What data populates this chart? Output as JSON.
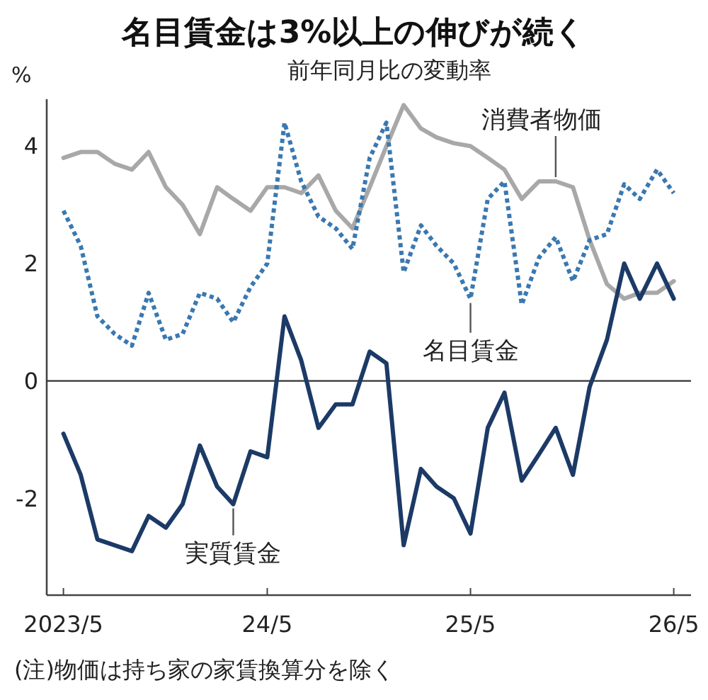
{
  "chart_data": {
    "type": "line",
    "title": "名目賃金は3%以上の伸びが続く",
    "subtitle": "前年同月比の変動率",
    "ylabel": "%",
    "annotations": [
      "(注)物価は持ち家の家賃換算分を除く"
    ],
    "x": [
      "2023-05",
      "2023-06",
      "2023-07",
      "2023-08",
      "2023-09",
      "2023-10",
      "2023-11",
      "2023-12",
      "2024-01",
      "2024-02",
      "2024-03",
      "2024-04",
      "2024-05",
      "2024-06",
      "2024-07",
      "2024-08",
      "2024-09",
      "2024-10",
      "2024-11",
      "2024-12",
      "2025-01",
      "2025-02",
      "2025-03",
      "2025-04",
      "2025-05",
      "2025-06",
      "2025-07",
      "2025-08",
      "2025-09",
      "2025-10",
      "2025-11",
      "2025-12",
      "2026-01",
      "2026-02",
      "2026-03",
      "2026-04",
      "2026-05"
    ],
    "series": [
      {
        "name": "消費者物価",
        "color": "#a8a8a8",
        "line_style": "solid",
        "values": [
          3.8,
          3.9,
          3.9,
          3.7,
          3.6,
          3.9,
          3.3,
          3.0,
          2.5,
          3.3,
          3.1,
          2.9,
          3.3,
          3.3,
          3.2,
          3.5,
          2.9,
          2.6,
          3.3,
          4.0,
          4.7,
          4.3,
          4.15,
          4.05,
          4.0,
          3.8,
          3.6,
          3.1,
          3.4,
          3.4,
          3.3,
          2.4,
          1.65,
          1.4,
          1.5,
          1.5,
          1.7
        ]
      },
      {
        "name": "名目賃金",
        "color": "#3a78b0",
        "line_style": "dotted",
        "values": [
          2.9,
          2.3,
          1.1,
          0.8,
          0.6,
          1.5,
          0.7,
          0.8,
          1.5,
          1.4,
          1.0,
          1.6,
          2.0,
          4.4,
          3.4,
          2.8,
          2.6,
          2.25,
          3.8,
          4.4,
          1.85,
          2.65,
          2.3,
          2.0,
          1.4,
          3.1,
          3.4,
          1.3,
          2.1,
          2.45,
          1.7,
          2.4,
          2.5,
          3.35,
          3.1,
          3.6,
          3.2
        ]
      },
      {
        "name": "実質賃金",
        "color": "#1c3a66",
        "line_style": "solid",
        "values": [
          -0.9,
          -1.6,
          -2.7,
          -2.8,
          -2.9,
          -2.3,
          -2.5,
          -2.1,
          -1.1,
          -1.8,
          -2.1,
          -1.2,
          -1.3,
          1.1,
          0.35,
          -0.8,
          -0.4,
          -0.4,
          0.5,
          0.3,
          -2.8,
          -1.5,
          -1.8,
          -2.0,
          -2.6,
          -0.8,
          -0.2,
          -1.7,
          -1.25,
          -0.8,
          -1.6,
          -0.1,
          0.7,
          2.0,
          1.4,
          2.0,
          1.4
        ]
      }
    ],
    "xlim": [
      "2023-04",
      "2026-06"
    ],
    "xticks": [
      {
        "value": "2023-05",
        "label": "2023/5"
      },
      {
        "value": "2024-05",
        "label": "24/5"
      },
      {
        "value": "2025-05",
        "label": "25/5"
      },
      {
        "value": "2026-05",
        "label": "26/5"
      }
    ],
    "ylim": [
      -3.65,
      4.8
    ],
    "yticks": [
      -2,
      0,
      2,
      4
    ],
    "ref_lines": [
      {
        "axis": "y",
        "value": 0,
        "color": "#333333"
      }
    ],
    "grid": false,
    "marker": "none"
  }
}
